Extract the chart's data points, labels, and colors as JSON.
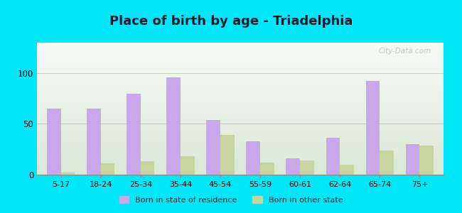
{
  "title": "Place of birth by age - Triadelphia",
  "categories": [
    "5-17",
    "18-24",
    "25-34",
    "35-44",
    "45-54",
    "55-59",
    "60-61",
    "62-64",
    "65-74",
    "75+"
  ],
  "born_in_state": [
    65,
    65,
    80,
    96,
    54,
    33,
    16,
    36,
    92,
    30
  ],
  "born_other_state": [
    2,
    11,
    13,
    18,
    39,
    12,
    14,
    10,
    24,
    29
  ],
  "color_state": "#c8a8e8",
  "color_other": "#c8d4a0",
  "background_outer": "#00e8f8",
  "ylim": [
    0,
    130
  ],
  "yticks": [
    0,
    50,
    100
  ],
  "bar_width": 0.35,
  "legend_state_label": "Born in state of residence",
  "legend_other_label": "Born in other state",
  "grid_color": "#cccccc",
  "title_fontsize": 13,
  "watermark": "City-Data.com",
  "grad_top_left": "#d8edd8",
  "grad_top_right": "#f0f8f0",
  "grad_bottom_left": "#c8e8c8",
  "grad_bottom_right": "#e8f4e8"
}
